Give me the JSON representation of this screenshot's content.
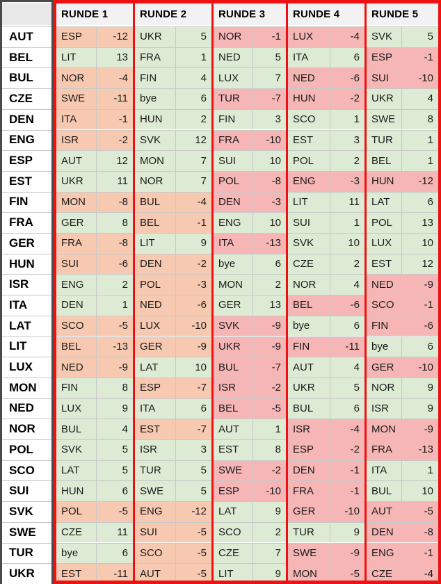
{
  "rounds": [
    "RUNDE 1",
    "RUNDE 2",
    "RUNDE 3",
    "RUNDE 4",
    "RUNDE 5"
  ],
  "rows": [
    {
      "team": "AUT",
      "r": [
        [
          "ESP",
          "-12"
        ],
        [
          "UKR",
          "5"
        ],
        [
          "NOR",
          "-1"
        ],
        [
          "LUX",
          "-4"
        ],
        [
          "SVK",
          "5"
        ]
      ]
    },
    {
      "team": "BEL",
      "r": [
        [
          "LIT",
          "13"
        ],
        [
          "FRA",
          "1"
        ],
        [
          "NED",
          "5"
        ],
        [
          "ITA",
          "6"
        ],
        [
          "ESP",
          "-1"
        ]
      ]
    },
    {
      "team": "BUL",
      "r": [
        [
          "NOR",
          "-4"
        ],
        [
          "FIN",
          "4"
        ],
        [
          "LUX",
          "7"
        ],
        [
          "NED",
          "-6"
        ],
        [
          "SUI",
          "-10"
        ]
      ]
    },
    {
      "team": "CZE",
      "r": [
        [
          "SWE",
          "-11"
        ],
        [
          "bye",
          "6"
        ],
        [
          "TUR",
          "-7"
        ],
        [
          "HUN",
          "-2"
        ],
        [
          "UKR",
          "4"
        ]
      ]
    },
    {
      "team": "DEN",
      "r": [
        [
          "ITA",
          "-1"
        ],
        [
          "HUN",
          "2"
        ],
        [
          "FIN",
          "3"
        ],
        [
          "SCO",
          "1"
        ],
        [
          "SWE",
          "8"
        ]
      ]
    },
    {
      "team": "ENG",
      "r": [
        [
          "ISR",
          "-2"
        ],
        [
          "SVK",
          "12"
        ],
        [
          "FRA",
          "-10"
        ],
        [
          "EST",
          "3"
        ],
        [
          "TUR",
          "1"
        ]
      ]
    },
    {
      "team": "ESP",
      "r": [
        [
          "AUT",
          "12"
        ],
        [
          "MON",
          "7"
        ],
        [
          "SUI",
          "10"
        ],
        [
          "POL",
          "2"
        ],
        [
          "BEL",
          "1"
        ]
      ]
    },
    {
      "team": "EST",
      "r": [
        [
          "UKR",
          "11"
        ],
        [
          "NOR",
          "7"
        ],
        [
          "POL",
          "-8"
        ],
        [
          "ENG",
          "-3"
        ],
        [
          "HUN",
          "-12"
        ]
      ]
    },
    {
      "team": "FIN",
      "r": [
        [
          "MON",
          "-8"
        ],
        [
          "BUL",
          "-4"
        ],
        [
          "DEN",
          "-3"
        ],
        [
          "LIT",
          "11"
        ],
        [
          "LAT",
          "6"
        ]
      ]
    },
    {
      "team": "FRA",
      "r": [
        [
          "GER",
          "8"
        ],
        [
          "BEL",
          "-1"
        ],
        [
          "ENG",
          "10"
        ],
        [
          "SUI",
          "1"
        ],
        [
          "POL",
          "13"
        ]
      ]
    },
    {
      "team": "GER",
      "r": [
        [
          "FRA",
          "-8"
        ],
        [
          "LIT",
          "9"
        ],
        [
          "ITA",
          "-13"
        ],
        [
          "SVK",
          "10"
        ],
        [
          "LUX",
          "10"
        ]
      ]
    },
    {
      "team": "HUN",
      "r": [
        [
          "SUI",
          "-6"
        ],
        [
          "DEN",
          "-2"
        ],
        [
          "bye",
          "6"
        ],
        [
          "CZE",
          "2"
        ],
        [
          "EST",
          "12"
        ]
      ]
    },
    {
      "team": "ISR",
      "r": [
        [
          "ENG",
          "2"
        ],
        [
          "POL",
          "-3"
        ],
        [
          "MON",
          "2"
        ],
        [
          "NOR",
          "4"
        ],
        [
          "NED",
          "-9"
        ]
      ]
    },
    {
      "team": "ITA",
      "r": [
        [
          "DEN",
          "1"
        ],
        [
          "NED",
          "-6"
        ],
        [
          "GER",
          "13"
        ],
        [
          "BEL",
          "-6"
        ],
        [
          "SCO",
          "-1"
        ]
      ]
    },
    {
      "team": "LAT",
      "r": [
        [
          "SCO",
          "-5"
        ],
        [
          "LUX",
          "-10"
        ],
        [
          "SVK",
          "-9"
        ],
        [
          "bye",
          "6"
        ],
        [
          "FIN",
          "-6"
        ]
      ]
    },
    {
      "team": "LIT",
      "r": [
        [
          "BEL",
          "-13"
        ],
        [
          "GER",
          "-9"
        ],
        [
          "UKR",
          "-9"
        ],
        [
          "FIN",
          "-11"
        ],
        [
          "bye",
          "6"
        ]
      ]
    },
    {
      "team": "LUX",
      "r": [
        [
          "NED",
          "-9"
        ],
        [
          "LAT",
          "10"
        ],
        [
          "BUL",
          "-7"
        ],
        [
          "AUT",
          "4"
        ],
        [
          "GER",
          "-10"
        ]
      ]
    },
    {
      "team": "MON",
      "r": [
        [
          "FIN",
          "8"
        ],
        [
          "ESP",
          "-7"
        ],
        [
          "ISR",
          "-2"
        ],
        [
          "UKR",
          "5"
        ],
        [
          "NOR",
          "9"
        ]
      ]
    },
    {
      "team": "NED",
      "r": [
        [
          "LUX",
          "9"
        ],
        [
          "ITA",
          "6"
        ],
        [
          "BEL",
          "-5"
        ],
        [
          "BUL",
          "6"
        ],
        [
          "ISR",
          "9"
        ]
      ]
    },
    {
      "team": "NOR",
      "r": [
        [
          "BUL",
          "4"
        ],
        [
          "EST",
          "-7"
        ],
        [
          "AUT",
          "1"
        ],
        [
          "ISR",
          "-4"
        ],
        [
          "MON",
          "-9"
        ]
      ]
    },
    {
      "team": "POL",
      "r": [
        [
          "SVK",
          "5"
        ],
        [
          "ISR",
          "3"
        ],
        [
          "EST",
          "8"
        ],
        [
          "ESP",
          "-2"
        ],
        [
          "FRA",
          "-13"
        ]
      ]
    },
    {
      "team": "SCO",
      "r": [
        [
          "LAT",
          "5"
        ],
        [
          "TUR",
          "5"
        ],
        [
          "SWE",
          "-2"
        ],
        [
          "DEN",
          "-1"
        ],
        [
          "ITA",
          "1"
        ]
      ]
    },
    {
      "team": "SUI",
      "r": [
        [
          "HUN",
          "6"
        ],
        [
          "SWE",
          "5"
        ],
        [
          "ESP",
          "-10"
        ],
        [
          "FRA",
          "-1"
        ],
        [
          "BUL",
          "10"
        ]
      ]
    },
    {
      "team": "SVK",
      "r": [
        [
          "POL",
          "-5"
        ],
        [
          "ENG",
          "-12"
        ],
        [
          "LAT",
          "9"
        ],
        [
          "GER",
          "-10"
        ],
        [
          "AUT",
          "-5"
        ]
      ]
    },
    {
      "team": "SWE",
      "r": [
        [
          "CZE",
          "11"
        ],
        [
          "SUI",
          "-5"
        ],
        [
          "SCO",
          "2"
        ],
        [
          "TUR",
          "9"
        ],
        [
          "DEN",
          "-8"
        ]
      ]
    },
    {
      "team": "TUR",
      "r": [
        [
          "bye",
          "6"
        ],
        [
          "SCO",
          "-5"
        ],
        [
          "CZE",
          "7"
        ],
        [
          "SWE",
          "-9"
        ],
        [
          "ENG",
          "-1"
        ]
      ]
    },
    {
      "team": "UKR",
      "r": [
        [
          "EST",
          "-11"
        ],
        [
          "AUT",
          "-5"
        ],
        [
          "LIT",
          "9"
        ],
        [
          "MON",
          "-5"
        ],
        [
          "CZE",
          "-4"
        ]
      ]
    }
  ],
  "colors": {
    "positive": "#deebd4",
    "negative_r12": "#f8c9b1",
    "negative_r345": "#f6b6b6",
    "frame": "#ee1111"
  }
}
